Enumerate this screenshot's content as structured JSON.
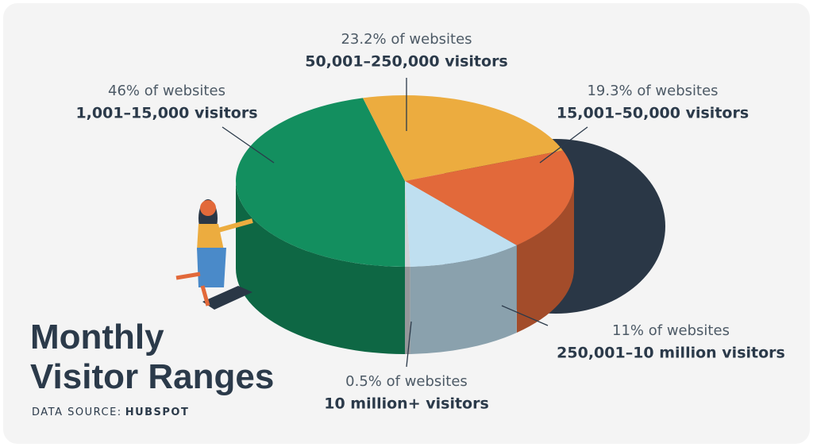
{
  "chart_data": {
    "type": "pie",
    "title": "Monthly Visitor Ranges",
    "source_label": "DATA SOURCE:",
    "source": "HUBSPOT",
    "categories": [
      "1,001–15,000 visitors",
      "50,001–250,000 visitors",
      "15,001–50,000 visitors",
      "250,001–10 million visitors",
      "10 million+ visitors"
    ],
    "values": [
      46,
      23.2,
      19.3,
      11,
      0.5
    ],
    "value_labels": [
      "46% of websites",
      "23.2% of websites",
      "19.3% of websites",
      "11% of websites",
      "0.5% of websites"
    ],
    "colors": [
      "#138f5f",
      "#ecac3f",
      "#e2693a",
      "#bfdff0",
      "#cfd2d6"
    ]
  }
}
